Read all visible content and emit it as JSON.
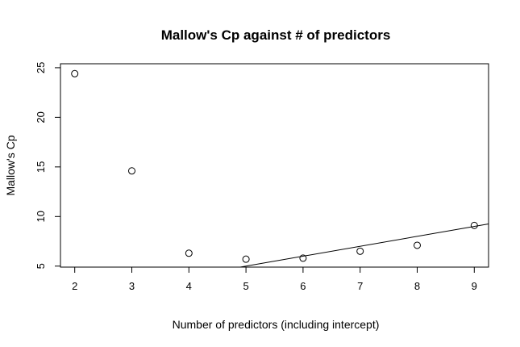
{
  "chart_data": {
    "type": "scatter",
    "title": "Mallow's Cp against # of predictors",
    "xlabel": "Number of predictors (including intercept)",
    "ylabel": "Mallow's Cp",
    "xlim": [
      1.75,
      9.25
    ],
    "ylim": [
      4.9,
      25.4
    ],
    "x_ticks": [
      2,
      3,
      4,
      5,
      6,
      7,
      8,
      9
    ],
    "y_ticks": [
      5,
      10,
      15,
      20,
      25
    ],
    "x": [
      2,
      3,
      4,
      5,
      6,
      7,
      8,
      9
    ],
    "y": [
      24.4,
      14.6,
      6.3,
      5.7,
      5.8,
      6.5,
      7.1,
      9.1
    ],
    "reference_line": {
      "type": "abline",
      "intercept": 0,
      "slope": 1
    },
    "grid": false,
    "legend": "none"
  }
}
